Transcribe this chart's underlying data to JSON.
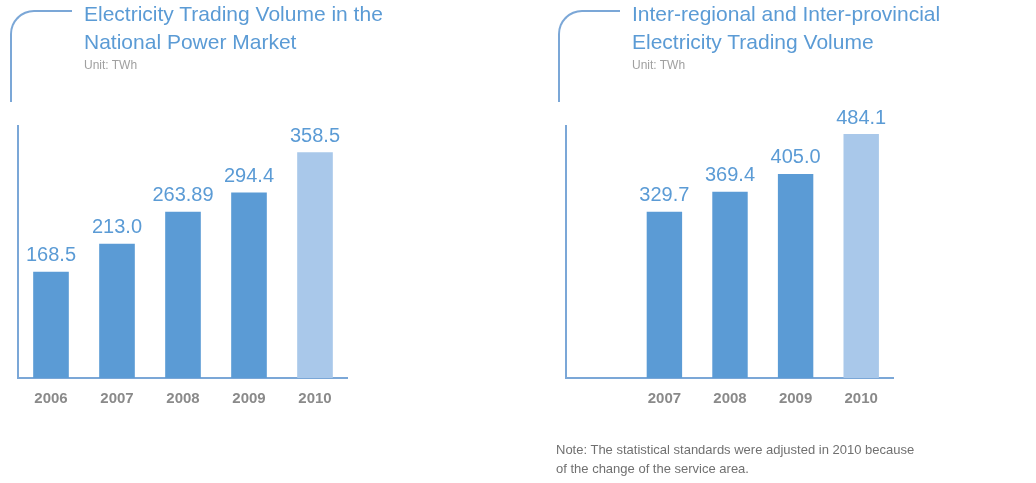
{
  "chart_data": [
    {
      "type": "bar",
      "title": "Electricity Trading Volume in the National Power Market",
      "subtitle": "Unit: TWh",
      "categories": [
        "2006",
        "2007",
        "2008",
        "2009",
        "2010"
      ],
      "values": [
        168.5,
        213.0,
        263.89,
        294.4,
        358.5
      ],
      "value_labels": [
        "168.5",
        "213.0",
        "263.89",
        "294.4",
        "358.5"
      ],
      "color": "#5b9bd5",
      "colors": [
        "#5b9bd5",
        "#5b9bd5",
        "#5b9bd5",
        "#5b9bd5",
        "#a9c8ea"
      ],
      "grid": false,
      "legend": false,
      "tick_labels": "x"
    },
    {
      "type": "bar",
      "title": "Inter-regional and Inter-provincial Electricity Trading Volume",
      "subtitle": "Unit: TWh",
      "categories": [
        null,
        "2007",
        "2008",
        "2009",
        "2010"
      ],
      "values": [
        null,
        329.7,
        369.4,
        405.0,
        484.1
      ],
      "value_labels": [
        null,
        "329.7",
        "369.4",
        "405.0",
        "484.1"
      ],
      "color": "#5b9bd5",
      "colors": [
        "#5b9bd5",
        "#5b9bd5",
        "#5b9bd5",
        "#5b9bd5",
        "#a9c8ea"
      ],
      "grid": false,
      "legend": false,
      "tick_labels": "x",
      "annotations": [
        "Note:  The statistical standards were adjusted in 2010 because of the change of the service area."
      ]
    }
  ]
}
